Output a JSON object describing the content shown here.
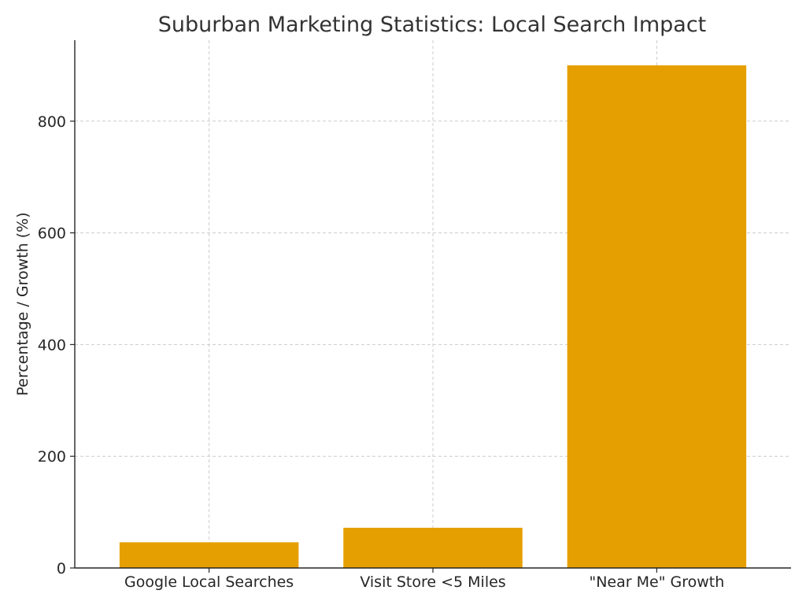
{
  "chart_data": {
    "type": "bar",
    "title": "Suburban Marketing Statistics: Local Search Impact",
    "xlabel": "",
    "ylabel": "Percentage / Growth (%)",
    "categories": [
      "Google Local Searches",
      "Visit Store <5 Miles",
      "\"Near Me\" Growth"
    ],
    "values": [
      46,
      72,
      900
    ],
    "ylim": [
      0,
      945
    ],
    "yticks": [
      0,
      200,
      400,
      600,
      800
    ],
    "grid": true,
    "legend": "none",
    "bar_color": "#e69f00",
    "grid_color": "#cccccc",
    "axis_color": "#262626"
  }
}
